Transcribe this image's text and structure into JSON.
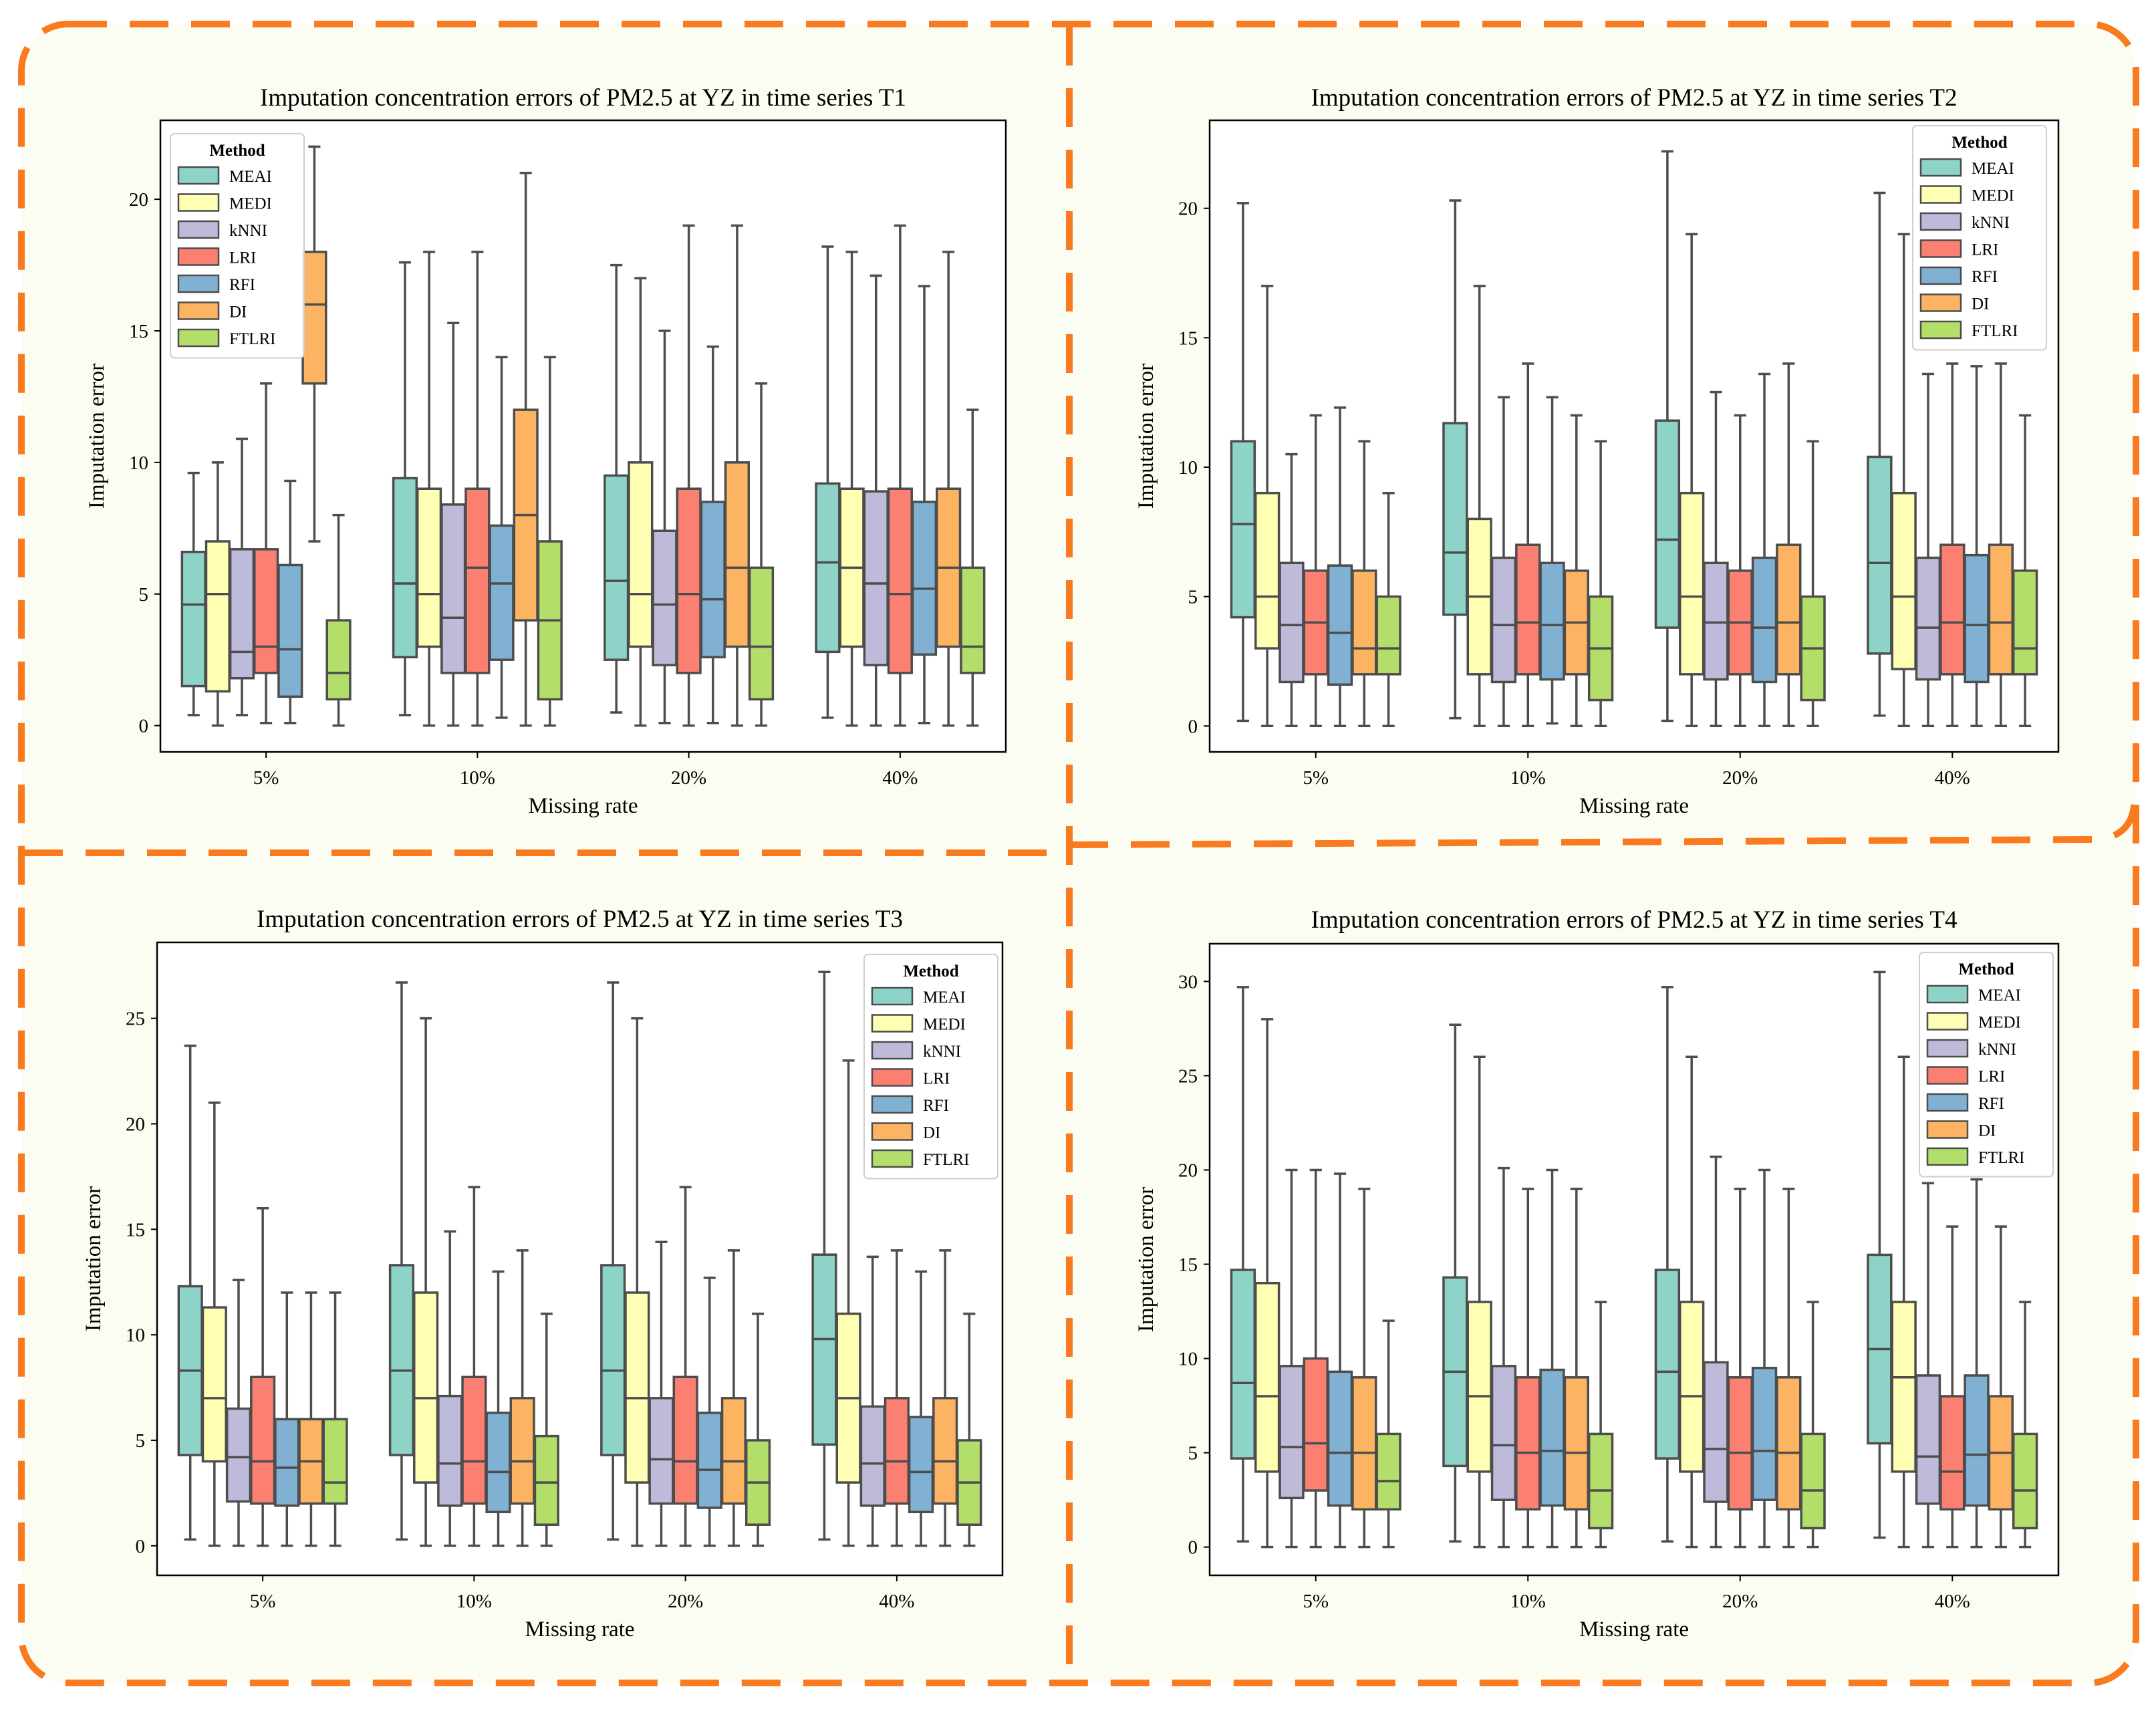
{
  "legend_colors": {
    "MEAI": "#8dd3c7",
    "MEDI": "#ffffb3",
    "kNNI": "#bebada",
    "LRI": "#fb8072",
    "RFI": "#80b1d3",
    "DI": "#fdb462",
    "FTLRI": "#b3de69"
  },
  "frame_color": "#f97a1f",
  "chart_data": [
    {
      "type": "box",
      "title": "Imputation concentration errors of PM2.5 at YZ in time series T1",
      "xlabel": "Missing rate",
      "ylabel": "Imputation error",
      "legend_title": "Method",
      "legend_position": "top-left",
      "categories": [
        "5%",
        "10%",
        "20%",
        "40%"
      ],
      "ylim": [
        -1,
        23
      ],
      "yticks": [
        0,
        5,
        10,
        15,
        20
      ],
      "methods": [
        "MEAI",
        "MEDI",
        "kNNI",
        "LRI",
        "RFI",
        "DI",
        "FTLRI"
      ],
      "boxes": [
        [
          [
            0.4,
            1.5,
            4.6,
            6.6,
            9.6
          ],
          [
            0,
            1.3,
            5,
            7,
            10
          ],
          [
            0.4,
            1.8,
            2.8,
            6.7,
            10.9
          ],
          [
            0.1,
            2,
            3,
            6.7,
            13
          ],
          [
            0.1,
            1.1,
            2.9,
            6.1,
            9.3
          ],
          [
            7,
            13,
            16,
            18,
            22
          ],
          [
            0,
            1,
            2,
            4,
            8
          ]
        ],
        [
          [
            0.4,
            2.6,
            5.4,
            9.4,
            17.6
          ],
          [
            0,
            3,
            5,
            9,
            18
          ],
          [
            0,
            2,
            4.1,
            8.4,
            15.3
          ],
          [
            0,
            2,
            6,
            9,
            18
          ],
          [
            0.3,
            2.5,
            5.4,
            7.6,
            14
          ],
          [
            0,
            4,
            8,
            12,
            21
          ],
          [
            0,
            1,
            4,
            7,
            14
          ]
        ],
        [
          [
            0.5,
            2.5,
            5.5,
            9.5,
            17.5
          ],
          [
            0,
            3,
            5,
            10,
            17
          ],
          [
            0.1,
            2.3,
            4.6,
            7.4,
            15
          ],
          [
            0,
            2,
            5,
            9,
            19
          ],
          [
            0.1,
            2.6,
            4.8,
            8.5,
            14.4
          ],
          [
            0,
            3,
            6,
            10,
            19
          ],
          [
            0,
            1,
            3,
            6,
            13
          ]
        ],
        [
          [
            0.3,
            2.8,
            6.2,
            9.2,
            18.2
          ],
          [
            0,
            3,
            6,
            9,
            18
          ],
          [
            0,
            2.3,
            5.4,
            8.9,
            17.1
          ],
          [
            0,
            2,
            5,
            9,
            19
          ],
          [
            0.1,
            2.7,
            5.2,
            8.5,
            16.7
          ],
          [
            0,
            3,
            6,
            9,
            18
          ],
          [
            0,
            2,
            3,
            6,
            12
          ]
        ]
      ]
    },
    {
      "type": "box",
      "title": "Imputation concentration errors of PM2.5 at YZ in time series T2",
      "xlabel": "Missing rate",
      "ylabel": "Imputation error",
      "legend_title": "Method",
      "legend_position": "top-right",
      "categories": [
        "5%",
        "10%",
        "20%",
        "40%"
      ],
      "ylim": [
        -1,
        23.4
      ],
      "yticks": [
        0,
        5,
        10,
        15,
        20
      ],
      "methods": [
        "MEAI",
        "MEDI",
        "kNNI",
        "LRI",
        "RFI",
        "DI",
        "FTLRI"
      ],
      "boxes": [
        [
          [
            0.2,
            4.2,
            7.8,
            11,
            20.2
          ],
          [
            0,
            3,
            5,
            9,
            17
          ],
          [
            0,
            1.7,
            3.9,
            6.3,
            10.5
          ],
          [
            0,
            2,
            4,
            6,
            12
          ],
          [
            0,
            1.6,
            3.6,
            6.2,
            12.3
          ],
          [
            0,
            2,
            3,
            6,
            11
          ],
          [
            0,
            2,
            3,
            5,
            9
          ]
        ],
        [
          [
            0.3,
            4.3,
            6.7,
            11.7,
            20.3
          ],
          [
            0,
            2,
            5,
            8,
            17
          ],
          [
            0,
            1.7,
            3.9,
            6.5,
            12.7
          ],
          [
            0,
            2,
            4,
            7,
            14
          ],
          [
            0.1,
            1.8,
            3.9,
            6.3,
            12.7
          ],
          [
            0,
            2,
            4,
            6,
            12
          ],
          [
            0,
            1,
            3,
            5,
            11
          ]
        ],
        [
          [
            0.2,
            3.8,
            7.2,
            11.8,
            22.2
          ],
          [
            0,
            2,
            5,
            9,
            19
          ],
          [
            0,
            1.8,
            4,
            6.3,
            12.9
          ],
          [
            0,
            2,
            4,
            6,
            12
          ],
          [
            0,
            1.7,
            3.8,
            6.5,
            13.6
          ],
          [
            0,
            2,
            4,
            7,
            14
          ],
          [
            0,
            1,
            3,
            5,
            11
          ]
        ],
        [
          [
            0.4,
            2.8,
            6.3,
            10.4,
            20.6
          ],
          [
            0,
            2.2,
            5,
            9,
            19
          ],
          [
            0,
            1.8,
            3.8,
            6.5,
            13.6
          ],
          [
            0,
            2,
            4,
            7,
            14
          ],
          [
            0,
            1.7,
            3.9,
            6.6,
            13.9
          ],
          [
            0,
            2,
            4,
            7,
            14
          ],
          [
            0,
            2,
            3,
            6,
            12
          ]
        ]
      ]
    },
    {
      "type": "box",
      "title": "Imputation concentration errors of PM2.5 at YZ in time series T3",
      "xlabel": "Missing rate",
      "ylabel": "Imputation error",
      "legend_title": "Method",
      "legend_position": "top-right",
      "categories": [
        "5%",
        "10%",
        "20%",
        "40%"
      ],
      "ylim": [
        -1.4,
        28.6
      ],
      "yticks": [
        0,
        5,
        10,
        15,
        20,
        25
      ],
      "methods": [
        "MEAI",
        "MEDI",
        "kNNI",
        "LRI",
        "RFI",
        "DI",
        "FTLRI"
      ],
      "boxes": [
        [
          [
            0.3,
            4.3,
            8.3,
            12.3,
            23.7
          ],
          [
            0,
            4,
            7,
            11.3,
            21
          ],
          [
            0,
            2.1,
            4.2,
            6.5,
            12.6
          ],
          [
            0,
            2,
            4,
            8,
            16
          ],
          [
            0,
            1.9,
            3.7,
            6,
            12
          ],
          [
            0,
            2,
            4,
            6,
            12
          ],
          [
            0,
            2,
            3,
            6,
            12
          ]
        ],
        [
          [
            0.3,
            4.3,
            8.3,
            13.3,
            26.7
          ],
          [
            0,
            3,
            7,
            12,
            25
          ],
          [
            0,
            1.9,
            3.9,
            7.1,
            14.9
          ],
          [
            0,
            2,
            4,
            8,
            17
          ],
          [
            0,
            1.6,
            3.5,
            6.3,
            13
          ],
          [
            0,
            2,
            4,
            7,
            14
          ],
          [
            0,
            1,
            3,
            5.2,
            11
          ]
        ],
        [
          [
            0.3,
            4.3,
            8.3,
            13.3,
            26.7
          ],
          [
            0,
            3,
            7,
            12,
            25
          ],
          [
            0,
            2,
            4.1,
            7,
            14.4
          ],
          [
            0,
            2,
            4,
            8,
            17
          ],
          [
            0,
            1.8,
            3.6,
            6.3,
            12.7
          ],
          [
            0,
            2,
            4,
            7,
            14
          ],
          [
            0,
            1,
            3,
            5,
            11
          ]
        ],
        [
          [
            0.3,
            4.8,
            9.8,
            13.8,
            27.2
          ],
          [
            0,
            3,
            7,
            11,
            23
          ],
          [
            0,
            1.9,
            3.9,
            6.6,
            13.7
          ],
          [
            0,
            2,
            4,
            7,
            14
          ],
          [
            0,
            1.6,
            3.5,
            6.1,
            13
          ],
          [
            0,
            2,
            4,
            7,
            14
          ],
          [
            0,
            1,
            3,
            5,
            11
          ]
        ]
      ]
    },
    {
      "type": "box",
      "title": "Imputation concentration errors of PM2.5 at YZ in time series T4",
      "xlabel": "Missing rate",
      "ylabel": "Imputation error",
      "legend_title": "Method",
      "legend_position": "top-right",
      "categories": [
        "5%",
        "10%",
        "20%",
        "40%"
      ],
      "ylim": [
        -1.5,
        32
      ],
      "yticks": [
        0,
        5,
        10,
        15,
        20,
        25,
        30
      ],
      "methods": [
        "MEAI",
        "MEDI",
        "kNNI",
        "LRI",
        "RFI",
        "DI",
        "FTLRI"
      ],
      "boxes": [
        [
          [
            0.3,
            4.7,
            8.7,
            14.7,
            29.7
          ],
          [
            0,
            4,
            8,
            14,
            28
          ],
          [
            0,
            2.6,
            5.3,
            9.6,
            20
          ],
          [
            0,
            3,
            5.5,
            10,
            20
          ],
          [
            0,
            2.2,
            5,
            9.3,
            19.8
          ],
          [
            0,
            2,
            5,
            9,
            19
          ],
          [
            0,
            2,
            3.5,
            6,
            12
          ]
        ],
        [
          [
            0.3,
            4.3,
            9.3,
            14.3,
            27.7
          ],
          [
            0,
            4,
            8,
            13,
            26
          ],
          [
            0,
            2.5,
            5.4,
            9.6,
            20.1
          ],
          [
            0,
            2,
            5,
            9,
            19
          ],
          [
            0,
            2.2,
            5.1,
            9.4,
            20
          ],
          [
            0,
            2,
            5,
            9,
            19
          ],
          [
            0,
            1,
            3,
            6,
            13
          ]
        ],
        [
          [
            0.3,
            4.7,
            9.3,
            14.7,
            29.7
          ],
          [
            0,
            4,
            8,
            13,
            26
          ],
          [
            0,
            2.4,
            5.2,
            9.8,
            20.7
          ],
          [
            0,
            2,
            5,
            9,
            19
          ],
          [
            0,
            2.5,
            5.1,
            9.5,
            20
          ],
          [
            0,
            2,
            5,
            9,
            19
          ],
          [
            0,
            1,
            3,
            6,
            13
          ]
        ],
        [
          [
            0.5,
            5.5,
            10.5,
            15.5,
            30.5
          ],
          [
            0,
            4,
            9,
            13,
            26
          ],
          [
            0,
            2.3,
            4.8,
            9.1,
            19.3
          ],
          [
            0,
            2,
            4,
            8,
            17
          ],
          [
            0,
            2.2,
            4.9,
            9.1,
            19.5
          ],
          [
            0,
            2,
            5,
            8,
            17
          ],
          [
            0,
            1,
            3,
            6,
            13
          ]
        ]
      ]
    }
  ]
}
